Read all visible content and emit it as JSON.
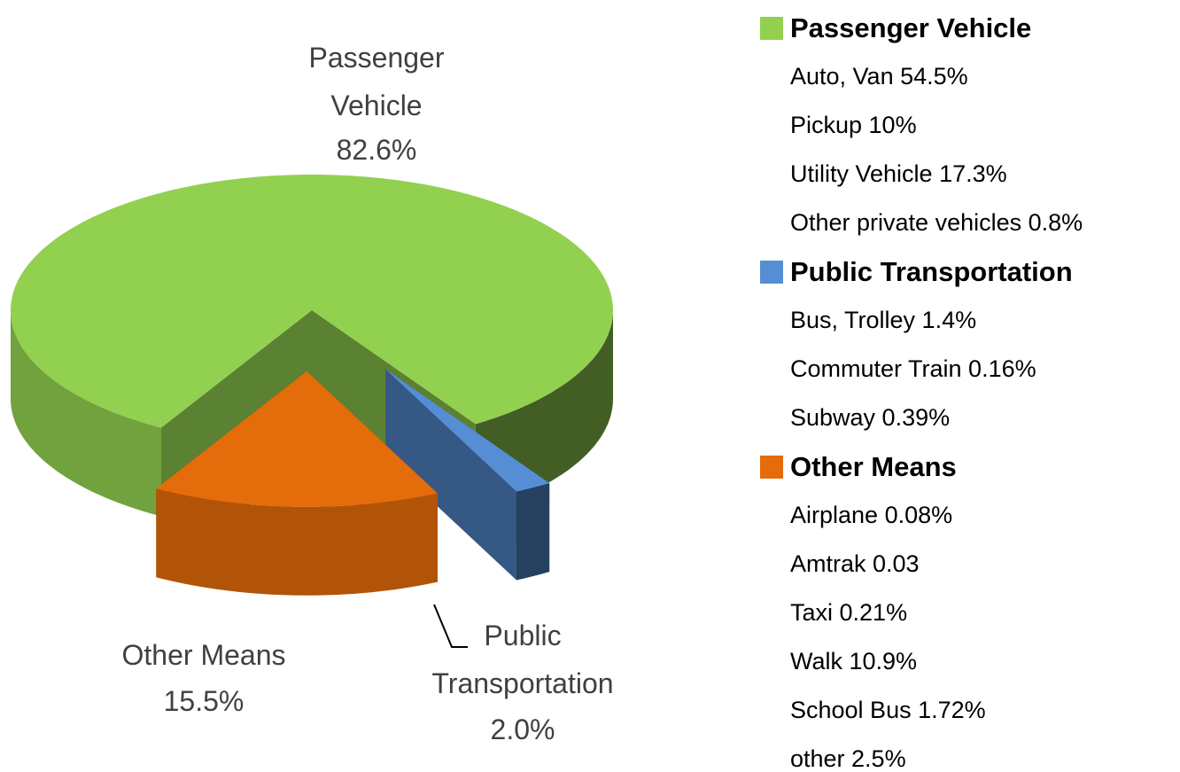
{
  "chart_data": {
    "type": "pie",
    "categories": [
      "Passenger Vehicle",
      "Public Transportation",
      "Other Means"
    ],
    "values": [
      82.6,
      2.0,
      15.5
    ],
    "value_labels": [
      "82.6%",
      "2.0%",
      "15.5%"
    ],
    "colors": [
      "#92d050",
      "#558ed5",
      "#e46c0a"
    ],
    "details": [
      [
        "Auto, Van 54.5%",
        "Pickup 10%",
        "Utility Vehicle 17.3%",
        "Other private vehicles  0.8%"
      ],
      [
        "Bus, Trolley  1.4%",
        "Commuter Train  0.16%",
        "Subway  0.39%"
      ],
      [
        "Airplane  0.08%",
        "Amtrak  0.03",
        "Taxi  0.21%",
        "Walk  10.9%",
        "School Bus  1.72%",
        "other  2.5%"
      ]
    ]
  }
}
